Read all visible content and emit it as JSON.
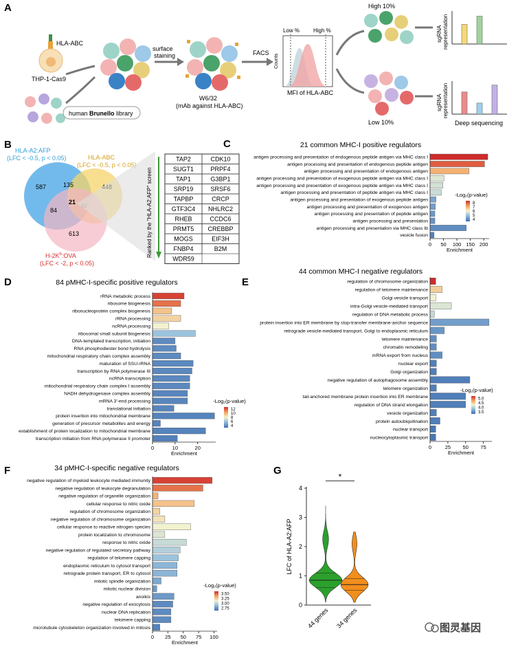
{
  "panels": {
    "A": "A",
    "B": "B",
    "C": "C",
    "D": "D",
    "E": "E",
    "F": "F",
    "G": "G"
  },
  "panel_a": {
    "hla_abc": "HLA-ABC",
    "cell_line": "THP-1-Cas9",
    "library_prefix": "human ",
    "library_bold": "Brunello",
    "library_suffix": " library",
    "surface_staining_1": "surface",
    "surface_staining_2": "staining",
    "antibody_1": "W6/32",
    "antibody_2": "(mAb against HLA-ABC)",
    "facs": "FACS",
    "low_pct": "Low %",
    "high_pct": "High %",
    "counts": "Counts",
    "mfi": "MFI of HLA-ABC",
    "high10": "High 10%",
    "low10": "Low 10%",
    "sgrna_1": "sgRNA",
    "sgrna_2": "representation",
    "deep_seq": "Deep sequencing",
    "bars_high": [
      0.62,
      0.88
    ],
    "bars_low": [
      0.7,
      0.35,
      0.92
    ]
  },
  "panel_b": {
    "afp_label_1": "HLA-A2:AFP",
    "afp_label_2": "(LFC < -0.5, p < 0.05)",
    "abc_label_1": "HLA-ABC",
    "abc_label_2": "(LFC < -0.5, p < 0.05)",
    "ova_label_1": "H-2K",
    "ova_label_sup": "b",
    "ova_label_2": ":OVA",
    "ova_label_3": "(LFC < -2, p < 0.05)",
    "n587": "587",
    "n135": "135",
    "n448": "448",
    "n84": "84",
    "n21": "21",
    "n42": "42",
    "n613": "613",
    "ranked": "Ranked by the \"HLA-A2:AFP\" screen",
    "genes": [
      [
        "TAP2",
        "CDK10"
      ],
      [
        "SUGT1",
        "PRPF4"
      ],
      [
        "TAP1",
        "G3BP1"
      ],
      [
        "SRP19",
        "SRSF6"
      ],
      [
        "TAPBP",
        "CRCP"
      ],
      [
        "GTF3C4",
        "NHLRC2"
      ],
      [
        "RHEB",
        "CCDC6"
      ],
      [
        "PRMT5",
        "CREBBP"
      ],
      [
        "MOGS",
        "EIF3H"
      ],
      [
        "FNBP4",
        "B2M"
      ],
      [
        "WDR59",
        ""
      ]
    ]
  },
  "chart_data": [
    {
      "id": "C",
      "type": "bar",
      "title": "21 common MHC-I positive regulators",
      "xlabel": "Enrichment",
      "xticks": [
        0,
        50,
        100,
        150,
        200
      ],
      "xlim": [
        0,
        220
      ],
      "legend_title": "-Log₂(p-value)",
      "legend_ticks": [
        "8",
        "7",
        "6",
        "5",
        "4"
      ],
      "color_range": [
        3.5,
        8.2
      ],
      "categories": [
        "antigen processing and presentation of endogenous peptide antigen via MHC class I",
        "antigen processing and presentation of endogenous peptide antigen",
        "antigen processing and presentation of endogenous antigen",
        "antigen processing and presentation of exogenous peptide antigen via MHC class I",
        "antigen processing and presentation of exogenous peptide antigen via MHC class I",
        "antigen processing and presentation of peptide antigen via MHC class I",
        "antigen processing and presentation of exogenous peptide antigen",
        "antigen processing and presentation of exogenous antigen",
        "antigen processing and presentation of peptide antigen",
        "antigen processing and presentation",
        "antigen processing and presentation via MHC class Ib",
        "vesicle fusion"
      ],
      "values": [
        215,
        203,
        145,
        52,
        48,
        42,
        22,
        20,
        18,
        18,
        135,
        15
      ],
      "colors": [
        8.2,
        7.7,
        6.8,
        5.6,
        5.5,
        5.4,
        4.4,
        4.3,
        4.2,
        4.1,
        4.0,
        3.8
      ]
    },
    {
      "id": "D",
      "type": "bar",
      "title": "84 pMHC-I-specific positive regulators",
      "xlabel": "Enrichment",
      "xticks": [
        0,
        10,
        20
      ],
      "xlim": [
        0,
        28
      ],
      "legend_title": "-Log₂(p-value)",
      "legend_ticks": [
        "12",
        "10",
        "8",
        "6",
        "4"
      ],
      "color_range": [
        3,
        13
      ],
      "categories": [
        "rRNA metabolic process",
        "ribosome biogenesis",
        "ribonucleoprotein complex biogenesis",
        "rRNA processing",
        "ncRNA processing",
        "ribosomal small subunit biogenesis",
        "DNA-templated transcription, initiation",
        "RNA phosphodiester bond hydrolysis",
        "mitochondrial respiratory chain complex assembly",
        "maturation of SSU-rRNA",
        "transcription by RNA polymerase III",
        "ncRNA transcription",
        "mitochondrial respiratory chain complex I assembly",
        "NADH dehydrogenase complex assembly",
        "mRNA 3'-end processing",
        "translational initiation",
        "protein insertion into mitochondrial membrane",
        "generation of precursor metabolites and energy",
        "establishment of protein localization to mitochondrial membrane",
        "transcription initiation from RNA polymerase II promoter"
      ],
      "values": [
        14,
        12.5,
        8.5,
        12.5,
        7.2,
        19,
        10,
        10.5,
        12.5,
        18,
        17.5,
        16.5,
        16.5,
        15.5,
        15.5,
        9.5,
        27.5,
        3.5,
        23.5,
        11
      ],
      "colors": [
        12.5,
        11.5,
        9.5,
        9.0,
        8.0,
        6.0,
        4.0,
        4.0,
        4.0,
        3.9,
        3.9,
        3.9,
        3.9,
        3.8,
        3.8,
        3.8,
        3.7,
        3.7,
        3.7,
        3.6
      ]
    },
    {
      "id": "E",
      "type": "bar",
      "title": "44 common MHC-I negative regulators",
      "xlabel": "Enrichment",
      "xticks": [
        0,
        25,
        50,
        75
      ],
      "xlim": [
        0,
        87
      ],
      "legend_title": "-Log₂(p-value)",
      "legend_ticks": [
        "5.0",
        "4.5",
        "4.0",
        "3.5"
      ],
      "color_range": [
        3.3,
        5.1
      ],
      "categories": [
        "regulation of chromosome organization",
        "regulation of telomere maintenance",
        "Golgi vesicle transport",
        "intra-Golgi vesicle-mediated transport",
        "regulation of DNA metabolic process",
        "protein insertion into ER membrane by stop-transfer membrane-anchor sequence",
        "retrograde vesicle-mediated transport, Golgi to endoplasmic reticulum",
        "telomere maintenance",
        "chromatin remodeling",
        "mRNA export from nucleus",
        "nuclear export",
        "Golgi organization",
        "negative regulation of autophagosome assembly",
        "telomere organization",
        "tail-anchored membrane protein insertion into ER membrane",
        "regulation of DNA strand elongation",
        "vesicle organization",
        "protein autoubiquitination",
        "nuclear transport",
        "nucleocytoplasmic transport"
      ],
      "values": [
        8,
        17,
        8,
        30,
        6,
        83,
        20,
        9,
        9,
        17,
        9,
        9,
        56,
        9,
        50,
        50,
        9,
        14,
        8,
        8
      ],
      "colors": [
        5.1,
        4.4,
        4.2,
        4.1,
        4.0,
        3.6,
        3.55,
        3.5,
        3.5,
        3.5,
        3.4,
        3.4,
        3.4,
        3.4,
        3.4,
        3.4,
        3.4,
        3.4,
        3.35,
        3.35
      ]
    },
    {
      "id": "F",
      "type": "bar",
      "title": "34 pMHC-I-specific negative regulators",
      "xlabel": "Enrichment",
      "xticks": [
        0,
        25,
        50,
        75,
        100
      ],
      "xlim": [
        0,
        105
      ],
      "legend_title": "-Log₂(p-value)",
      "legend_ticks": [
        "3.50",
        "3.25",
        "3.00",
        "2.75"
      ],
      "color_range": [
        2.65,
        3.65
      ],
      "categories": [
        "negative regulation of myeloid leukocyte mediated immunity",
        "negative regulation of leukocyte degranulation",
        "negative regulation of organelle organization",
        "cellular response to nitric oxide",
        "regulation of chromosome organization",
        "negative regulation of chromosome organization",
        "cellular response to reactive nitrogen species",
        "protein localization to chromosome",
        "response to nitric oxide",
        "negative regulation of regulated secretory pathway",
        "regulation of telomere capping",
        "endoplasmic reticulum to cytosol transport",
        "retrograde protein transport, ER to cytosol",
        "mitotic spindle organization",
        "mitotic nuclear division",
        "anoikis",
        "negative regulation of exocytosis",
        "nuclear DNA replication",
        "telomere capping",
        "microtubule cytoskeleton organization involved in mitosis"
      ],
      "values": [
        97,
        82,
        9,
        68,
        12,
        20,
        62,
        20,
        55,
        45,
        42,
        40,
        40,
        14,
        7,
        35,
        33,
        30,
        30,
        12
      ],
      "colors": [
        3.6,
        3.5,
        3.35,
        3.3,
        3.25,
        3.2,
        3.15,
        3.1,
        3.05,
        3.0,
        2.95,
        2.9,
        2.9,
        2.85,
        2.8,
        2.8,
        2.75,
        2.75,
        2.75,
        2.72
      ]
    },
    {
      "id": "G",
      "type": "violin",
      "ylabel": "LFC of HLA-A2:AFP",
      "ylim": [
        0,
        4
      ],
      "yticks": [
        0,
        1,
        2,
        3,
        4
      ],
      "categories": [
        "44 genes",
        "34 genes"
      ],
      "colors": [
        "#2ca02c",
        "#f28e1c"
      ],
      "medians": [
        0.85,
        0.7
      ],
      "quartiles": [
        [
          0.6,
          1.1
        ],
        [
          0.5,
          0.9
        ]
      ],
      "range": [
        [
          0.1,
          3.4
        ],
        [
          0.1,
          2.5
        ]
      ],
      "significance": "*"
    }
  ],
  "watermark": "图灵基因"
}
